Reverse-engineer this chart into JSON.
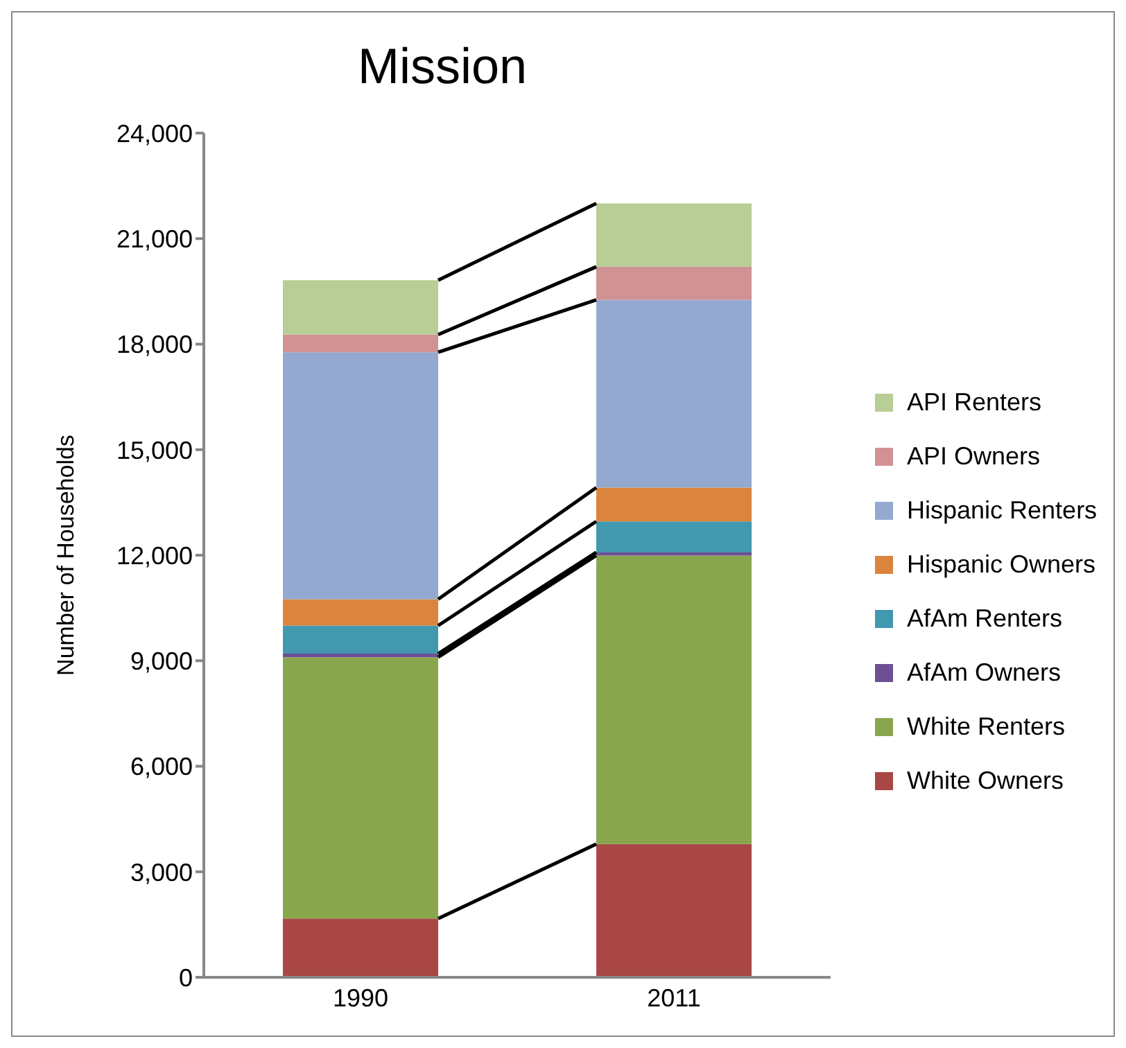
{
  "chart_data": {
    "type": "bar",
    "title": "Mission",
    "ylabel": "Number of Households",
    "categories": [
      "1990",
      "2011"
    ],
    "stacked": true,
    "ylim": [
      0,
      24000
    ],
    "yticks": [
      0,
      {
        "value": 3000,
        "label": "3,000"
      },
      {
        "value": 6000,
        "label": "6,000"
      },
      {
        "value": 9000,
        "label": "9,000"
      },
      {
        "value": 12000,
        "label": "12,000"
      },
      {
        "value": 15000,
        "label": "15,000"
      },
      {
        "value": 18000,
        "label": "18,000"
      },
      {
        "value": 21000,
        "label": "21,000"
      },
      {
        "value": 24000,
        "label": "24,000"
      }
    ],
    "grid": false,
    "legend": "right",
    "series": [
      {
        "name": "White Owners",
        "color": "#a94744",
        "values": [
          1670,
          3790
        ]
      },
      {
        "name": "White Renters",
        "color": "#8aa64d",
        "values": [
          7430,
          8200
        ]
      },
      {
        "name": "AfAm Owners",
        "color": "#6f4f94",
        "values": [
          100,
          90
        ]
      },
      {
        "name": "AfAm Renters",
        "color": "#4198af",
        "values": [
          800,
          880
        ]
      },
      {
        "name": "Hispanic Owners",
        "color": "#db843d",
        "values": [
          750,
          960
        ]
      },
      {
        "name": "Hispanic Renters",
        "color": "#93a9cf",
        "values": [
          7020,
          5340
        ]
      },
      {
        "name": "API Owners",
        "color": "#d09293",
        "values": [
          500,
          940
        ]
      },
      {
        "name": "API Renters",
        "color": "#b9cd96",
        "values": [
          1550,
          1800
        ]
      }
    ]
  }
}
